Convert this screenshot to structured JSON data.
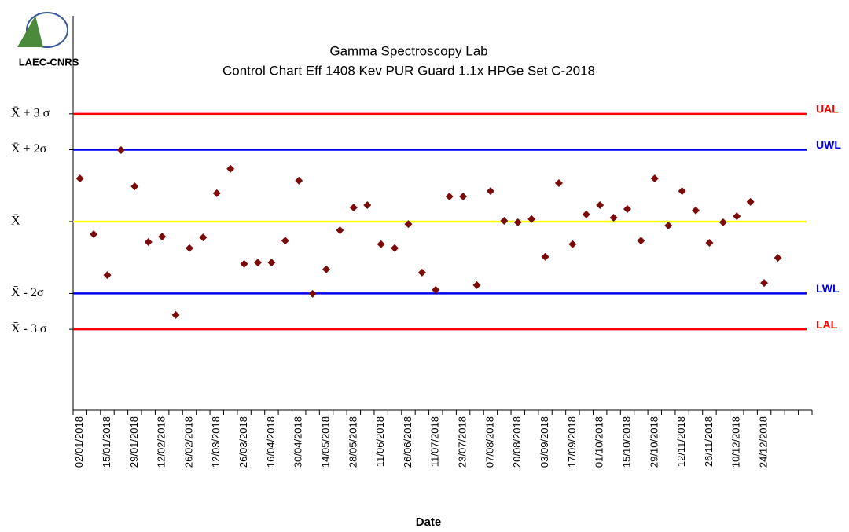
{
  "chart_data": {
    "type": "control",
    "logo": "LAEC-CNRS",
    "title": "Gamma Spectroscopy Lab",
    "subtitle": "Control Chart Eff 1408 Kev PUR Guard 1.1x HPGe Set C-2018",
    "x_label": "Date",
    "categories": [
      "02/01/2018",
      null,
      "15/01/2018",
      null,
      "29/01/2018",
      null,
      "12/02/2018",
      null,
      "26/02/2018",
      null,
      "12/03/2018",
      null,
      "26/03/2018",
      null,
      "16/04/2018",
      null,
      "30/04/2018",
      null,
      "14/05/2018",
      null,
      "28/05/2018",
      null,
      "11/06/2018",
      null,
      "26/06/2018",
      null,
      "11/07/2018",
      null,
      "23/07/2018",
      null,
      "07/08/2018",
      null,
      "20/08/2018",
      null,
      "03/09/2018",
      null,
      "17/09/2018",
      null,
      "01/10/2018",
      null,
      "15/10/2018",
      null,
      "29/10/2018",
      null,
      "12/11/2018",
      null,
      "26/11/2018",
      null,
      "10/12/2018",
      null,
      "24/12/2018",
      null,
      null,
      null
    ],
    "values": [
      1.2,
      -0.35,
      -1.49,
      1.99,
      0.98,
      -0.57,
      -0.42,
      -2.6,
      -0.74,
      -0.44,
      0.79,
      1.47,
      -1.18,
      -1.14,
      -1.14,
      -0.53,
      1.14,
      -2.01,
      -1.33,
      -0.24,
      0.39,
      0.46,
      -0.63,
      -0.74,
      -0.07,
      -1.42,
      -1.9,
      0.7,
      0.7,
      -1.77,
      0.85,
      0.02,
      -0.02,
      0.07,
      -0.98,
      1.07,
      -0.63,
      0.2,
      0.46,
      0.11,
      0.35,
      -0.53,
      1.2,
      -0.11,
      0.85,
      0.31,
      -0.59,
      -0.02,
      0.15,
      0.55,
      -1.71,
      -1.01,
      null,
      null
    ],
    "color": "#7b0a0a",
    "limits": [
      {
        "name": "UAL",
        "value": 3,
        "color": "#ff0000"
      },
      {
        "name": "UWL",
        "value": 2,
        "color": "#0000ee"
      },
      {
        "value": 0,
        "color": "#ffff00"
      },
      {
        "name": "LWL",
        "value": -2,
        "color": "#0000ee"
      },
      {
        "name": "LAL",
        "value": -3,
        "color": "#ff0000"
      }
    ],
    "ylim": [
      -5.25,
      5.73
    ],
    "yticks": [
      {
        "value": 3,
        "label": "X̄ + 3 σ"
      },
      {
        "value": 2,
        "label": "X̄ + 2σ"
      },
      {
        "value": 0,
        "label": "X̄"
      },
      {
        "value": -2,
        "label": "X̄ - 2σ"
      },
      {
        "value": -3,
        "label": "X̄ - 3 σ"
      }
    ]
  }
}
